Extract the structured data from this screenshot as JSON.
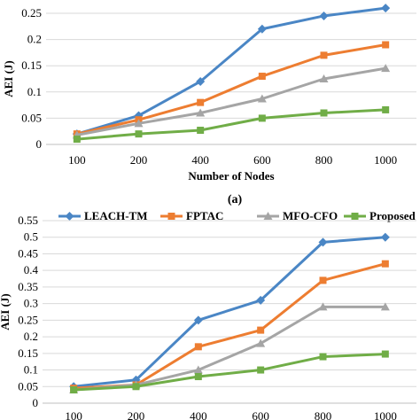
{
  "chart_data": [
    {
      "type": "line",
      "panel_label": "(a)",
      "categories": [
        "100",
        "200",
        "400",
        "600",
        "800",
        "1000"
      ],
      "xlabel": "Number of Nodes",
      "ylabel": "AEI (J)",
      "ylim": [
        0,
        0.25
      ],
      "yticks": [
        "0",
        "0.05",
        "0.1",
        "0.15",
        "0.2",
        "0.25"
      ],
      "grid": "horizontal",
      "series": [
        {
          "name": "LEACH-TM",
          "color": "#4a86c5",
          "marker": "diamond",
          "values": [
            0.02,
            0.055,
            0.12,
            0.22,
            0.245,
            0.26
          ]
        },
        {
          "name": "FPTAC",
          "color": "#ed7d31",
          "marker": "square",
          "values": [
            0.02,
            0.047,
            0.08,
            0.13,
            0.17,
            0.19
          ]
        },
        {
          "name": "MFO-CFO",
          "color": "#a5a5a5",
          "marker": "triangle",
          "values": [
            0.018,
            0.04,
            0.06,
            0.087,
            0.125,
            0.145
          ]
        },
        {
          "name": "Proposed",
          "color": "#70ad47",
          "marker": "square",
          "values": [
            0.01,
            0.02,
            0.027,
            0.05,
            0.06,
            0.066
          ]
        }
      ]
    },
    {
      "type": "line",
      "categories": [
        "100",
        "200",
        "400",
        "600",
        "800",
        "1000"
      ],
      "ylabel": "AEI (J)",
      "ylim": [
        0,
        0.55
      ],
      "yticks": [
        "0",
        "0.05",
        "0.1",
        "0.15",
        "0.2",
        "0.25",
        "0.3",
        "0.35",
        "0.4",
        "0.45",
        "0.5",
        "0.55"
      ],
      "grid": "horizontal",
      "legend": "top",
      "series": [
        {
          "name": "LEACH-TM",
          "color": "#4a86c5",
          "marker": "diamond",
          "values": [
            0.05,
            0.07,
            0.25,
            0.31,
            0.485,
            0.5
          ]
        },
        {
          "name": "FPTAC",
          "color": "#ed7d31",
          "marker": "square",
          "values": [
            0.045,
            0.055,
            0.17,
            0.22,
            0.37,
            0.42
          ]
        },
        {
          "name": "MFO-CFO",
          "color": "#a5a5a5",
          "marker": "triangle",
          "values": [
            0.04,
            0.055,
            0.1,
            0.18,
            0.29,
            0.29
          ]
        },
        {
          "name": "Proposed",
          "color": "#70ad47",
          "marker": "square",
          "values": [
            0.04,
            0.05,
            0.08,
            0.1,
            0.14,
            0.148
          ]
        }
      ]
    }
  ]
}
